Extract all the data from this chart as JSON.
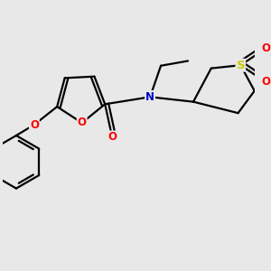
{
  "bg_color": "#e8e8e8",
  "bond_color": "#000000",
  "bond_width": 1.6,
  "atom_colors": {
    "O": "#ff0000",
    "N": "#0000cc",
    "S": "#cccc00",
    "C": "#000000"
  },
  "font_size": 8.5,
  "figsize": [
    3.0,
    3.0
  ],
  "dpi": 100
}
